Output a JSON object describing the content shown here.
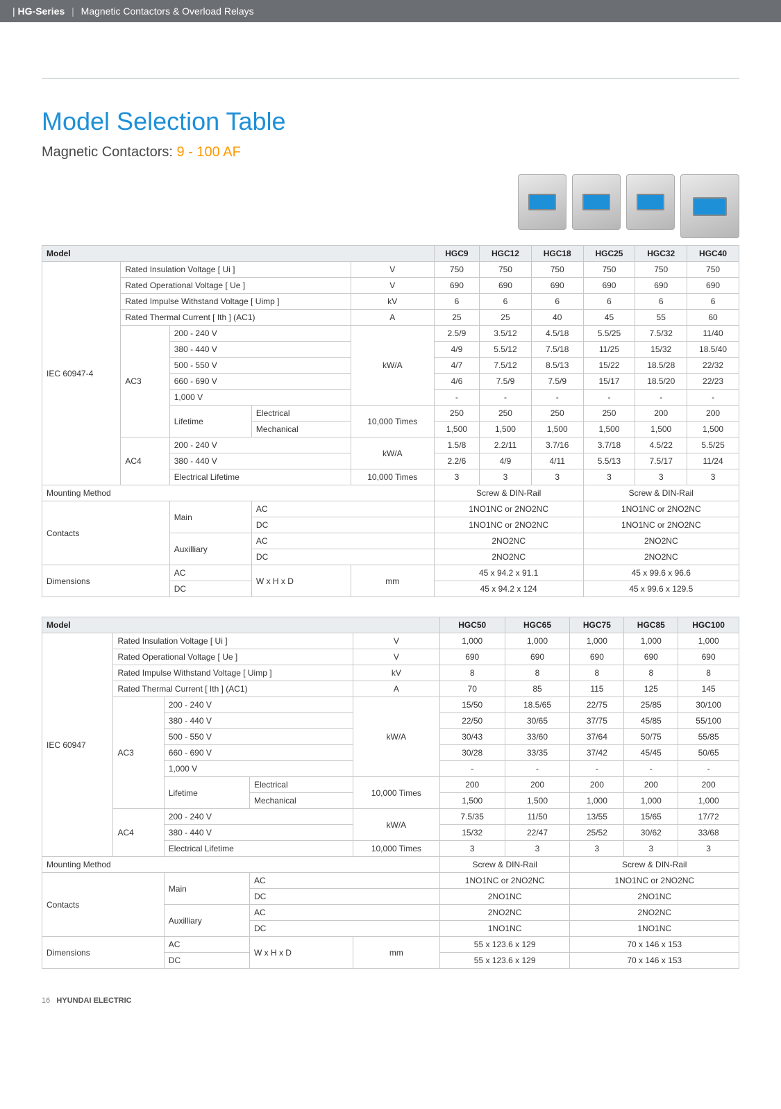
{
  "banner": {
    "series": "HG-Series",
    "desc": "Magnetic Contactors & Overload Relays"
  },
  "title": "Model Selection Table",
  "subtitle_prefix": "Magnetic Contactors: ",
  "subtitle_af": "9 - 100 AF",
  "footer": {
    "page": "16",
    "brand": "HYUNDAI ELECTRIC"
  },
  "t1": {
    "headers": {
      "model": "Model",
      "c": [
        "HGC9",
        "HGC12",
        "HGC18",
        "HGC25",
        "HGC32",
        "HGC40"
      ]
    },
    "iec_label": "IEC 60947-4",
    "rows": {
      "riv": {
        "lbl": "Rated Insulation Voltage [ Ui ]",
        "unit": "V",
        "v": [
          "750",
          "750",
          "750",
          "750",
          "750",
          "750"
        ]
      },
      "rov": {
        "lbl": "Rated Operational Voltage [ Ue ]",
        "unit": "V",
        "v": [
          "690",
          "690",
          "690",
          "690",
          "690",
          "690"
        ]
      },
      "riw": {
        "lbl": "Rated Impulse Withstand Voltage [ Uimp ]",
        "unit": "kV",
        "v": [
          "6",
          "6",
          "6",
          "6",
          "6",
          "6"
        ]
      },
      "rtc": {
        "lbl": "Rated Thermal Current [ Ith ] (AC1)",
        "unit": "A",
        "v": [
          "25",
          "25",
          "40",
          "45",
          "55",
          "60"
        ]
      },
      "ac3": {
        "lbl": "AC3",
        "r1": {
          "lbl": "200 - 240 V",
          "unit": "kW/A",
          "v": [
            "2.5/9",
            "3.5/12",
            "4.5/18",
            "5.5/25",
            "7.5/32",
            "11/40"
          ]
        },
        "r2": {
          "lbl": "380 - 440 V",
          "v": [
            "4/9",
            "5.5/12",
            "7.5/18",
            "11/25",
            "15/32",
            "18.5/40"
          ]
        },
        "r3": {
          "lbl": "500 - 550 V",
          "v": [
            "4/7",
            "7.5/12",
            "8.5/13",
            "15/22",
            "18.5/28",
            "22/32"
          ]
        },
        "r4": {
          "lbl": "660 - 690 V",
          "v": [
            "4/6",
            "7.5/9",
            "7.5/9",
            "15/17",
            "18.5/20",
            "22/23"
          ]
        },
        "r5": {
          "lbl": "1,000 V",
          "v": [
            "-",
            "-",
            "-",
            "-",
            "-",
            "-"
          ]
        },
        "life": {
          "lbl": "Lifetime",
          "elec": {
            "lbl": "Electrical",
            "unit": "10,000 Times",
            "v": [
              "250",
              "250",
              "250",
              "250",
              "200",
              "200"
            ]
          },
          "mech": {
            "lbl": "Mechanical",
            "v": [
              "1,500",
              "1,500",
              "1,500",
              "1,500",
              "1,500",
              "1,500"
            ]
          }
        }
      },
      "ac4": {
        "lbl": "AC4",
        "r1": {
          "lbl": "200 - 240 V",
          "unit": "kW/A",
          "v": [
            "1.5/8",
            "2.2/11",
            "3.7/16",
            "3.7/18",
            "4.5/22",
            "5.5/25"
          ]
        },
        "r2": {
          "lbl": "380 - 440 V",
          "v": [
            "2.2/6",
            "4/9",
            "4/11",
            "5.5/13",
            "7.5/17",
            "11/24"
          ]
        },
        "life": {
          "lbl": "Electrical Lifetime",
          "unit": "10,000 Times",
          "v": [
            "3",
            "3",
            "3",
            "3",
            "3",
            "3"
          ]
        }
      }
    },
    "mount": {
      "lbl": "Mounting Method",
      "g1": "Screw & DIN-Rail",
      "g2": "Screw & DIN-Rail"
    },
    "contacts": {
      "lbl": "Contacts",
      "main": {
        "lbl": "Main",
        "ac": {
          "lbl": "AC",
          "g1": "1NO1NC or 2NO2NC",
          "g2": "1NO1NC or 2NO2NC"
        },
        "dc": {
          "lbl": "DC",
          "g1": "1NO1NC or 2NO2NC",
          "g2": "1NO1NC or 2NO2NC"
        }
      },
      "aux": {
        "lbl": "Auxilliary",
        "ac": {
          "lbl": "AC",
          "g1": "2NO2NC",
          "g2": "2NO2NC"
        },
        "dc": {
          "lbl": "DC",
          "g1": "2NO2NC",
          "g2": "2NO2NC"
        }
      }
    },
    "dim": {
      "lbl": "Dimensions",
      "ac": {
        "lbl": "AC",
        "wxhxd": "W x H x D",
        "unit": "mm",
        "g1": "45 x 94.2 x 91.1",
        "g2": "45 x 99.6 x 96.6"
      },
      "dc": {
        "lbl": "DC",
        "g1": "45 x 94.2 x 124",
        "g2": "45 x 99.6 x 129.5"
      }
    }
  },
  "t2": {
    "headers": {
      "model": "Model",
      "c": [
        "HGC50",
        "HGC65",
        "HGC75",
        "HGC85",
        "HGC100"
      ]
    },
    "iec_label": "IEC 60947",
    "rows": {
      "riv": {
        "lbl": "Rated Insulation Voltage [ Ui ]",
        "unit": "V",
        "v": [
          "1,000",
          "1,000",
          "1,000",
          "1,000",
          "1,000"
        ]
      },
      "rov": {
        "lbl": "Rated Operational Voltage [ Ue ]",
        "unit": "V",
        "v": [
          "690",
          "690",
          "690",
          "690",
          "690"
        ]
      },
      "riw": {
        "lbl": "Rated Impulse Withstand Voltage [ Uimp ]",
        "unit": "kV",
        "v": [
          "8",
          "8",
          "8",
          "8",
          "8"
        ]
      },
      "rtc": {
        "lbl": "Rated Thermal Current [ Ith ] (AC1)",
        "unit": "A",
        "v": [
          "70",
          "85",
          "115",
          "125",
          "145"
        ]
      },
      "ac3": {
        "lbl": "AC3",
        "r1": {
          "lbl": "200 - 240 V",
          "unit": "kW/A",
          "v": [
            "15/50",
            "18.5/65",
            "22/75",
            "25/85",
            "30/100"
          ]
        },
        "r2": {
          "lbl": "380 - 440 V",
          "v": [
            "22/50",
            "30/65",
            "37/75",
            "45/85",
            "55/100"
          ]
        },
        "r3": {
          "lbl": "500 - 550 V",
          "v": [
            "30/43",
            "33/60",
            "37/64",
            "50/75",
            "55/85"
          ]
        },
        "r4": {
          "lbl": "660 - 690 V",
          "v": [
            "30/28",
            "33/35",
            "37/42",
            "45/45",
            "50/65"
          ]
        },
        "r5": {
          "lbl": "1,000 V",
          "v": [
            "-",
            "-",
            "-",
            "-",
            "-"
          ]
        },
        "life": {
          "lbl": "Lifetime",
          "elec": {
            "lbl": "Electrical",
            "unit": "10,000 Times",
            "v": [
              "200",
              "200",
              "200",
              "200",
              "200"
            ]
          },
          "mech": {
            "lbl": "Mechanical",
            "v": [
              "1,500",
              "1,500",
              "1,000",
              "1,000",
              "1,000"
            ]
          }
        }
      },
      "ac4": {
        "lbl": "AC4",
        "r1": {
          "lbl": "200 - 240 V",
          "unit": "kW/A",
          "v": [
            "7.5/35",
            "11/50",
            "13/55",
            "15/65",
            "17/72"
          ]
        },
        "r2": {
          "lbl": "380 - 440 V",
          "v": [
            "15/32",
            "22/47",
            "25/52",
            "30/62",
            "33/68"
          ]
        },
        "life": {
          "lbl": "Electrical Lifetime",
          "unit": "10,000 Times",
          "v": [
            "3",
            "3",
            "3",
            "3",
            "3"
          ]
        }
      }
    },
    "mount": {
      "lbl": "Mounting Method",
      "g1": "Screw & DIN-Rail",
      "g2": "Screw & DIN-Rail"
    },
    "contacts": {
      "lbl": "Contacts",
      "main": {
        "lbl": "Main",
        "ac": {
          "lbl": "AC",
          "g1": "1NO1NC or 2NO2NC",
          "g2": "1NO1NC or 2NO2NC"
        },
        "dc": {
          "lbl": "DC",
          "g1": "2NO1NC",
          "g2": "2NO1NC"
        }
      },
      "aux": {
        "lbl": "Auxilliary",
        "ac": {
          "lbl": "AC",
          "g1": "2NO2NC",
          "g2": "2NO2NC"
        },
        "dc": {
          "lbl": "DC",
          "g1": "1NO1NC",
          "g2": "1NO1NC"
        }
      }
    },
    "dim": {
      "lbl": "Dimensions",
      "ac": {
        "lbl": "AC",
        "wxhxd": "W x H x D",
        "unit": "mm",
        "g1": "55 x 123.6 x 129",
        "g2": "70 x 146 x 153"
      },
      "dc": {
        "lbl": "DC",
        "g1": "55 x 123.6 x 129",
        "g2": "70 x 146 x 153"
      }
    }
  }
}
